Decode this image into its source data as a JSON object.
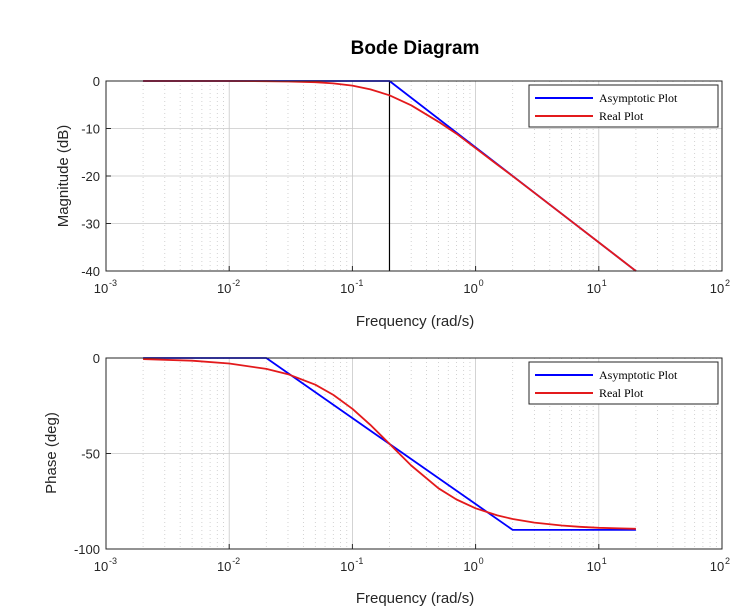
{
  "figure": {
    "title": "Bode Diagram"
  },
  "colors": {
    "asymptotic": "#0000ff",
    "real": "#e31a1c",
    "marker": "#000000",
    "grid": "#c8c8c8",
    "axes": "#262626"
  },
  "chart_data": [
    {
      "type": "line",
      "name": "magnitude",
      "xlabel": "Frequency (rad/s)",
      "ylabel": "Magnitude (dB)",
      "x_scale": "log",
      "xlim": [
        0.001,
        100
      ],
      "ylim": [
        -40,
        0
      ],
      "x_ticks": [
        {
          "base": "10",
          "exp": "-3"
        },
        {
          "base": "10",
          "exp": "-2"
        },
        {
          "base": "10",
          "exp": "-1"
        },
        {
          "base": "10",
          "exp": "0"
        },
        {
          "base": "10",
          "exp": "1"
        },
        {
          "base": "10",
          "exp": "2"
        }
      ],
      "y_ticks": [
        "0",
        "-10",
        "-20",
        "-30",
        "-40"
      ],
      "y_tick_values": [
        0,
        -10,
        -20,
        -30,
        -40
      ],
      "grid": true,
      "minor_grid": true,
      "legend": "top-right",
      "vertical_line_x": 0.2,
      "series": [
        {
          "name": "Asymptotic Plot",
          "color": "#0000ff",
          "x": [
            0.002,
            0.2,
            20
          ],
          "y": [
            0,
            0,
            -40
          ]
        },
        {
          "name": "Real Plot",
          "color": "#e31a1c",
          "x": [
            0.002,
            0.005,
            0.01,
            0.02,
            0.03,
            0.05,
            0.07,
            0.1,
            0.14,
            0.2,
            0.3,
            0.5,
            0.7,
            1,
            1.5,
            2,
            3,
            5,
            7,
            10,
            15,
            20
          ],
          "y": [
            0,
            -0.01,
            -0.01,
            -0.04,
            -0.1,
            -0.26,
            -0.5,
            -0.97,
            -1.77,
            -3.01,
            -5.12,
            -8.6,
            -11.1,
            -14.15,
            -17.6,
            -20.04,
            -23.54,
            -27.96,
            -30.88,
            -33.98,
            -37.5,
            -40
          ]
        }
      ]
    },
    {
      "type": "line",
      "name": "phase",
      "xlabel": "Frequency (rad/s)",
      "ylabel": "Phase (deg)",
      "x_scale": "log",
      "xlim": [
        0.001,
        100
      ],
      "ylim": [
        -100,
        0
      ],
      "x_ticks": [
        {
          "base": "10",
          "exp": "-3"
        },
        {
          "base": "10",
          "exp": "-2"
        },
        {
          "base": "10",
          "exp": "-1"
        },
        {
          "base": "10",
          "exp": "0"
        },
        {
          "base": "10",
          "exp": "1"
        },
        {
          "base": "10",
          "exp": "2"
        }
      ],
      "y_ticks": [
        "0",
        "-50",
        "-100"
      ],
      "y_tick_values": [
        0,
        -50,
        -100
      ],
      "grid": true,
      "minor_grid": true,
      "legend": "top-right",
      "series": [
        {
          "name": "Asymptotic Plot",
          "color": "#0000ff",
          "x": [
            0.002,
            0.02,
            2,
            20
          ],
          "y": [
            0,
            0,
            -90,
            -90
          ]
        },
        {
          "name": "Real Plot",
          "color": "#e31a1c",
          "x": [
            0.002,
            0.005,
            0.01,
            0.02,
            0.03,
            0.05,
            0.07,
            0.1,
            0.14,
            0.2,
            0.3,
            0.5,
            0.7,
            1,
            1.5,
            2,
            3,
            5,
            7,
            10,
            15,
            20
          ],
          "y": [
            -0.6,
            -1.4,
            -2.9,
            -5.7,
            -8.5,
            -14.0,
            -19.3,
            -26.6,
            -35.0,
            -45.0,
            -56.3,
            -68.2,
            -74.1,
            -78.7,
            -82.4,
            -84.3,
            -86.2,
            -87.7,
            -88.4,
            -88.9,
            -89.2,
            -89.4
          ]
        }
      ]
    }
  ]
}
